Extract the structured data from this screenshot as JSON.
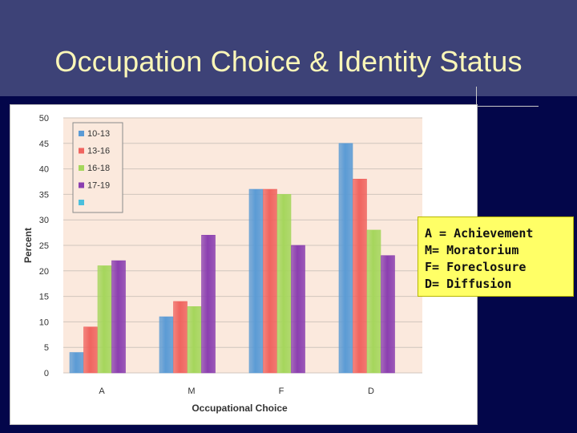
{
  "slide": {
    "title": "Occupation Choice & Identity Status"
  },
  "key_box": {
    "lines": [
      "A = Achievement",
      "M= Moratorium",
      "F= Foreclosure",
      "D= Diffusion"
    ]
  },
  "chart_data": {
    "type": "bar",
    "xlabel": "Occupational Choice",
    "ylabel": "Percent",
    "categories": [
      "A",
      "M",
      "F",
      "D"
    ],
    "ylim": [
      0,
      50
    ],
    "yticks": [
      0,
      5,
      10,
      15,
      20,
      25,
      30,
      35,
      40,
      45,
      50
    ],
    "grid": true,
    "legend_position": "top-left",
    "series": [
      {
        "name": "10-13",
        "color": "#5b9bd5",
        "values": [
          4,
          11,
          36,
          45
        ]
      },
      {
        "name": "13-16",
        "color": "#f0645f",
        "values": [
          9,
          14,
          36,
          38
        ]
      },
      {
        "name": "16-18",
        "color": "#a5d65c",
        "values": [
          21,
          13,
          35,
          28
        ]
      },
      {
        "name": "17-19",
        "color": "#8b3fb0",
        "values": [
          22,
          27,
          25,
          23
        ]
      },
      {
        "name": "",
        "color": "#4bbfdc",
        "values": [
          0,
          0,
          0,
          0
        ]
      }
    ],
    "plot_background": "#fbe9dd"
  }
}
